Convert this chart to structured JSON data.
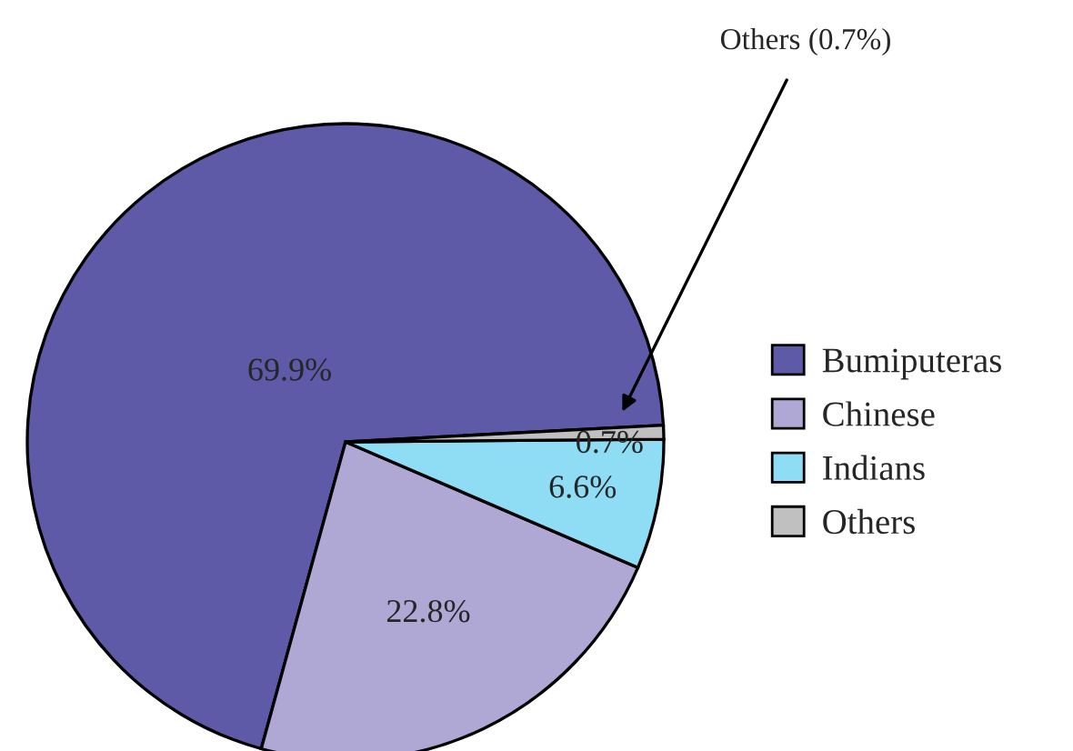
{
  "chart_data": {
    "type": "pie",
    "categories": [
      "Bumiputeras",
      "Chinese",
      "Indians",
      "Others"
    ],
    "values": [
      69.9,
      22.8,
      6.6,
      0.7
    ],
    "colors": [
      "#5f5aa8",
      "#b0a8d4",
      "#8fdcf5",
      "#c0c0c0"
    ],
    "value_labels": [
      "69.9%",
      "22.8%",
      "6.6%",
      "0.7%"
    ],
    "legend": "right",
    "annotations": [
      {
        "text": "Others (0.7%)",
        "x": "Others"
      }
    ]
  }
}
